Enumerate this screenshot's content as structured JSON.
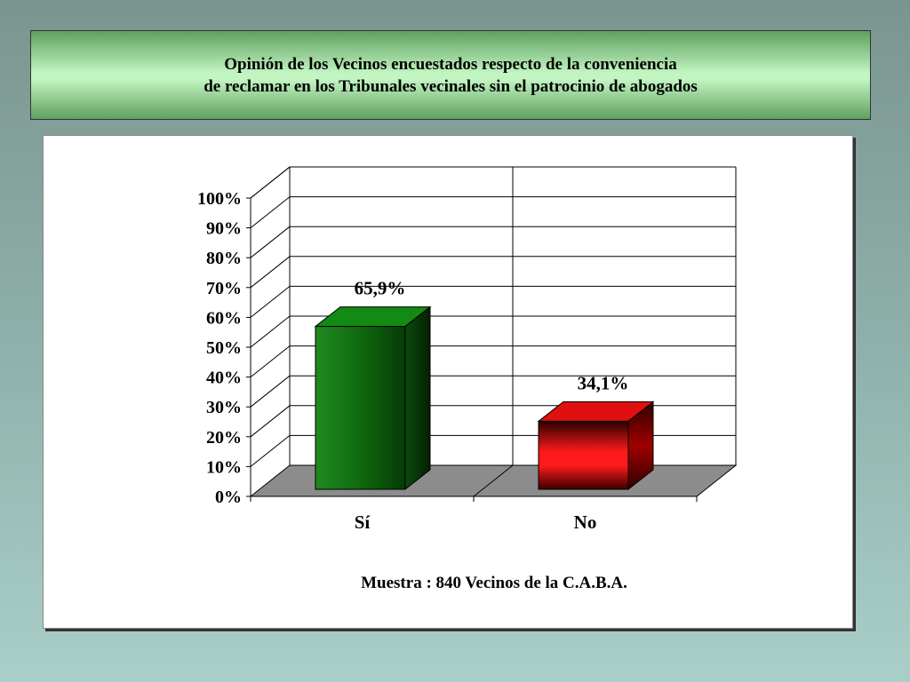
{
  "chart_data": {
    "type": "bar",
    "title_lines": [
      "Opinión de los Vecinos encuestados respecto de la conveniencia",
      "de reclamar  en los Tribunales vecinales sin el patrocinio de abogados"
    ],
    "categories": [
      "Sí",
      "No"
    ],
    "values": [
      65.9,
      34.1
    ],
    "data_labels": [
      "65,9%",
      "34,1%"
    ],
    "bar_colors": [
      "#1a7a1a",
      "#ff1a1a"
    ],
    "y_ticks": [
      "0%",
      "10%",
      "20%",
      "30%",
      "40%",
      "50%",
      "60%",
      "70%",
      "80%",
      "90%",
      "100%"
    ],
    "ylim": [
      0,
      100
    ],
    "grid": true,
    "footnote": "Muestra : 840 Vecinos de  la C.A.B.A."
  }
}
